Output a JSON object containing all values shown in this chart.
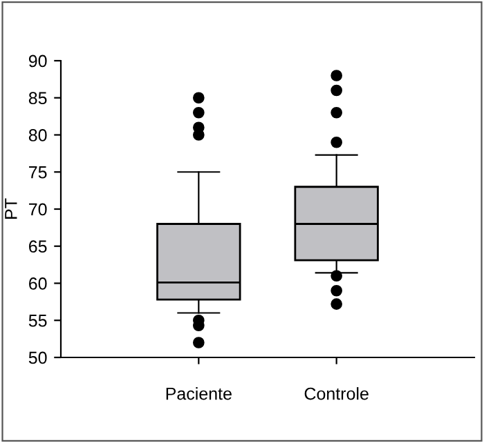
{
  "chart_data": {
    "type": "box",
    "ylabel": "PT",
    "categories": [
      "Paciente",
      "Controle"
    ],
    "boxes": [
      {
        "low": 56,
        "q1": 57.8,
        "median": 60.1,
        "q3": 68,
        "high": 75,
        "outliers": [
          80,
          81,
          83,
          85,
          55,
          54.3,
          52
        ]
      },
      {
        "low": 61.4,
        "q1": 63.1,
        "median": 68,
        "q3": 73,
        "high": 77.3,
        "outliers": [
          79,
          83,
          86,
          88,
          61,
          59,
          57.2
        ]
      }
    ],
    "color": "#c0c0c4",
    "ylim": [
      50,
      90
    ],
    "yticks": [
      50,
      55,
      60,
      65,
      70,
      75,
      80,
      85,
      90
    ],
    "grid": false
  }
}
